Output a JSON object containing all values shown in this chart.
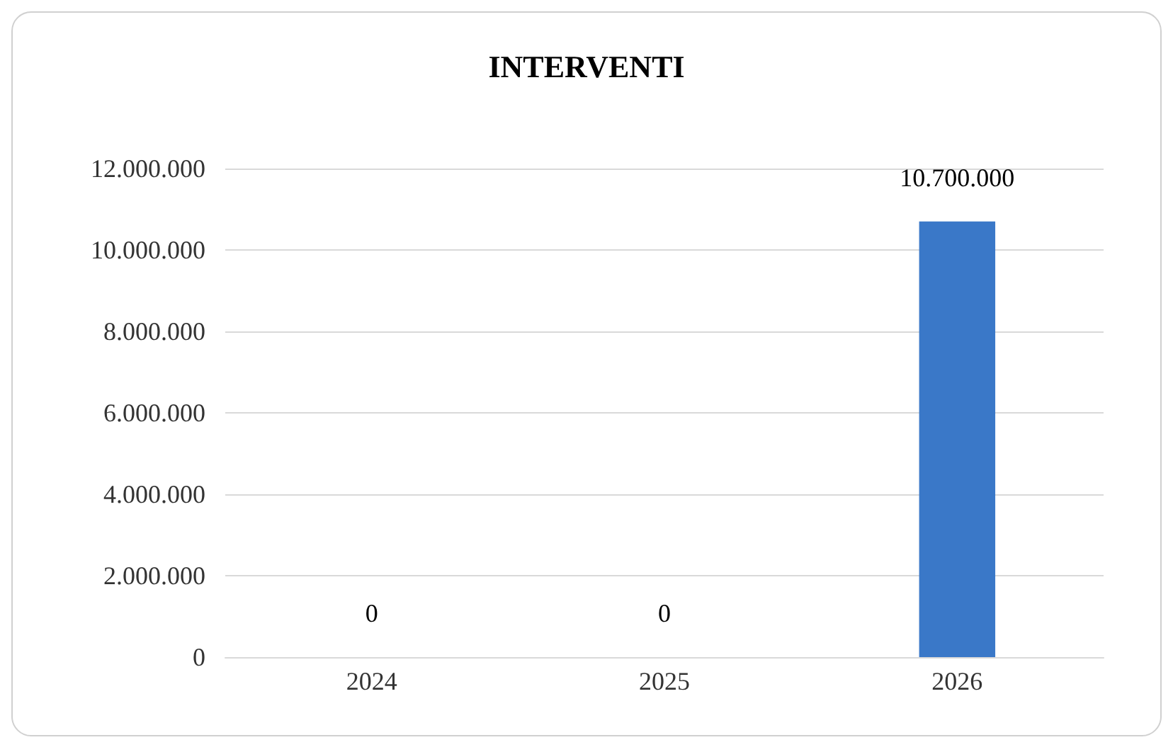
{
  "chart_data": {
    "type": "bar",
    "title": "INTERVENTI",
    "categories": [
      "2024",
      "2025",
      "2026"
    ],
    "values": [
      0,
      0,
      10700000
    ],
    "colors": [
      "#1f3864",
      "#1f3864",
      "#3a78c8"
    ],
    "value_labels": [
      "0",
      "0",
      "10.700.000"
    ],
    "ylim": [
      0,
      12000000
    ],
    "yticks": [
      {
        "value": 0,
        "label": "0"
      },
      {
        "value": 2000000,
        "label": "2.000.000"
      },
      {
        "value": 4000000,
        "label": "4.000.000"
      },
      {
        "value": 6000000,
        "label": "6.000.000"
      },
      {
        "value": 8000000,
        "label": "8.000.000"
      },
      {
        "value": 10000000,
        "label": "10.000.000"
      },
      {
        "value": 12000000,
        "label": "12.000.000"
      }
    ],
    "grid": "y"
  }
}
